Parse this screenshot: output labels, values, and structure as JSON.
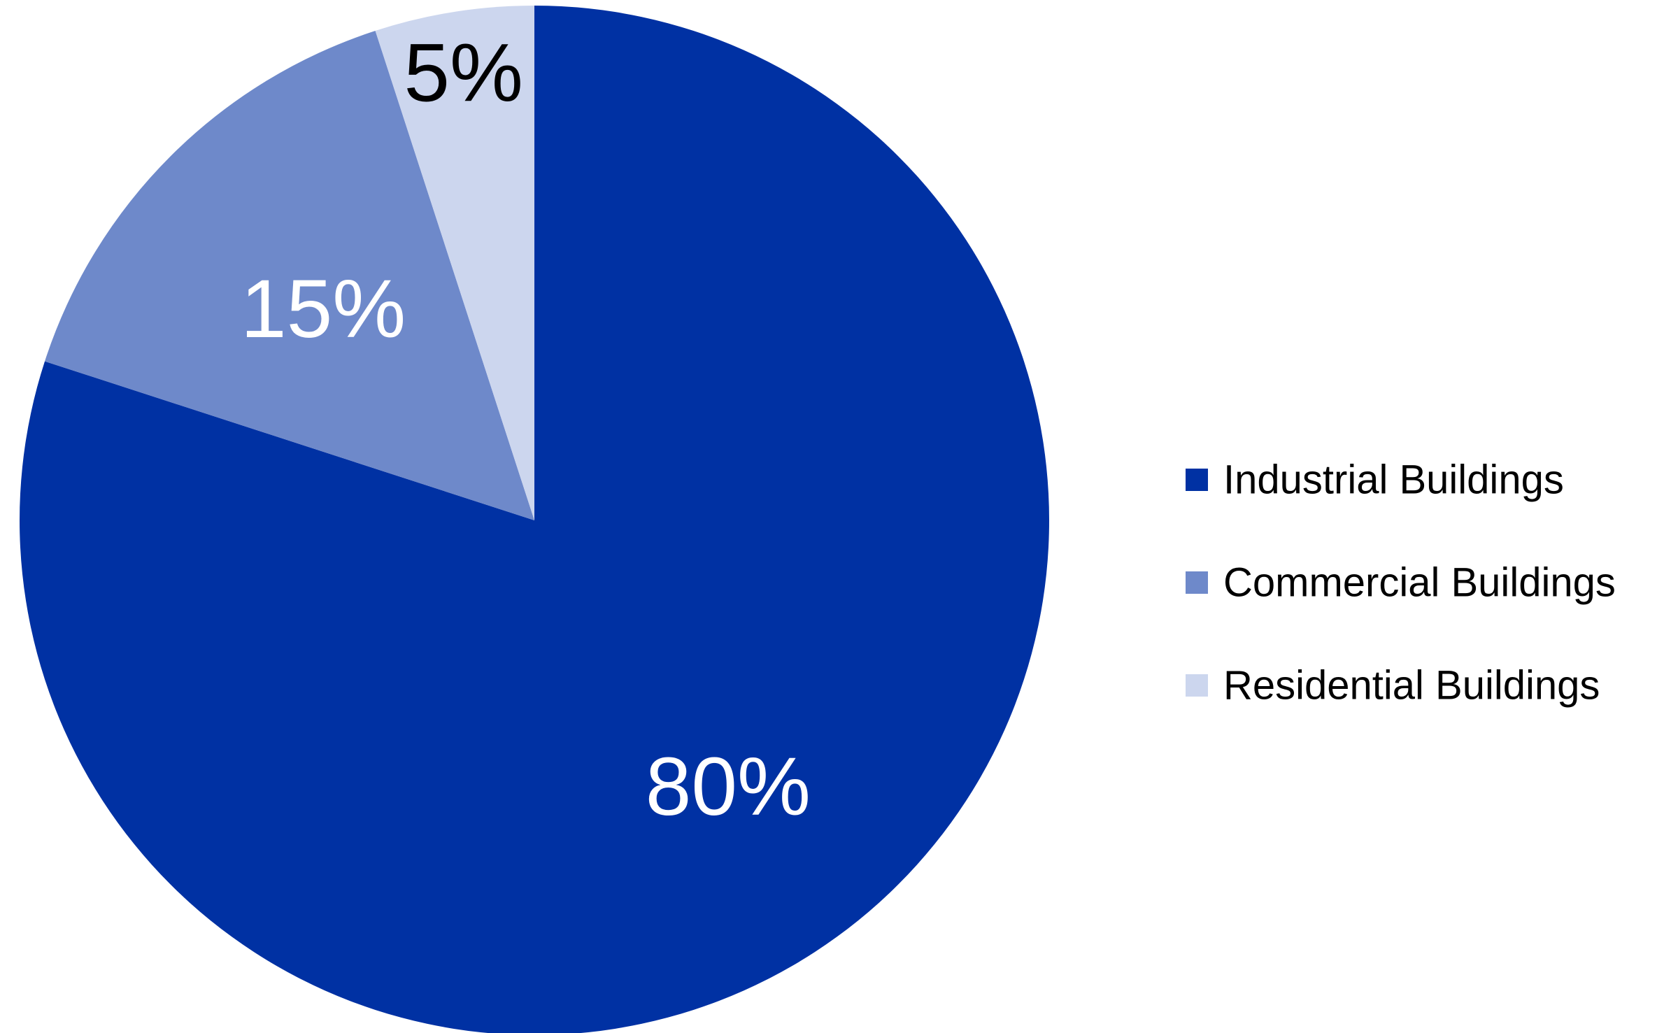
{
  "chart_data": {
    "type": "pie",
    "title": "",
    "slices": [
      {
        "name": "Industrial Buildings",
        "value": 80,
        "label": "80%",
        "color": "#0031A3",
        "label_color": "#ffffff"
      },
      {
        "name": "Commercial Buildings",
        "value": 15,
        "label": "15%",
        "color": "#6E89CA",
        "label_color": "#ffffff"
      },
      {
        "name": "Residential Buildings",
        "value": 5,
        "label": "5%",
        "color": "#CCD6EE",
        "label_color": "#000000"
      }
    ],
    "start": "12 o'clock",
    "direction": "clockwise",
    "legend": {
      "position": "right",
      "entries": [
        "Industrial Buildings",
        "Commercial Buildings",
        "Residential Buildings"
      ]
    }
  }
}
